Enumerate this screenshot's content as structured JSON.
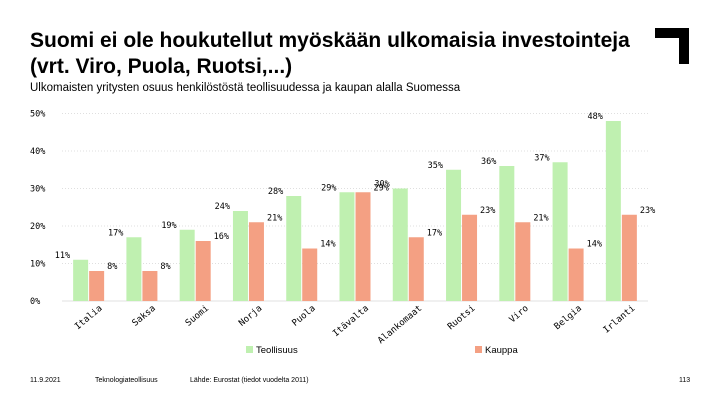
{
  "slide": {
    "title": "Suomi ei ole houkutellut myöskään ulkomaisia investointeja (vrt. Viro, Puola, Ruotsi,...)",
    "subtitle": "Ulkomaisten yritysten osuus henkilöstöstä teollisuudessa ja kaupan alalla Suomessa"
  },
  "footer": {
    "date": "11.9.2021",
    "org": "Teknologiateollisuus",
    "source": "Lähde: Eurostat (tiedot vuodelta 2011)",
    "page": "113"
  },
  "colors": {
    "teollisuus": "#bff0b0",
    "kauppa": "#f4a083",
    "grid": "#bfbfbf",
    "logo": "#000000"
  },
  "chart_data": {
    "type": "bar",
    "title": "",
    "xlabel": "",
    "ylabel": "",
    "ylim": [
      0,
      50
    ],
    "yticks": [
      "0%",
      "10%",
      "20%",
      "30%",
      "40%",
      "50%"
    ],
    "grid": true,
    "legend_position": "bottom",
    "categories": [
      "Italia",
      "Saksa",
      "Suomi",
      "Norja",
      "Puola",
      "Itävalta",
      "Alankomaat",
      "Ruotsi",
      "Viro",
      "Belgia",
      "Irlanti"
    ],
    "series": [
      {
        "name": "Teollisuus",
        "values": [
          11,
          17,
          19,
          24,
          28,
          29,
          30,
          35,
          36,
          37,
          48
        ],
        "labels": [
          "11%",
          "17%",
          "19%",
          "24%",
          "28%",
          "29%",
          "30%",
          "35%",
          "36%",
          "37%",
          "48%"
        ]
      },
      {
        "name": "Kauppa",
        "values": [
          8,
          8,
          16,
          21,
          14,
          29,
          17,
          23,
          21,
          14,
          23
        ],
        "labels": [
          "8%",
          "8%",
          "16%",
          "21%",
          "14%",
          "29%",
          "17%",
          "23%",
          "21%",
          "14%",
          "23%"
        ]
      }
    ]
  }
}
